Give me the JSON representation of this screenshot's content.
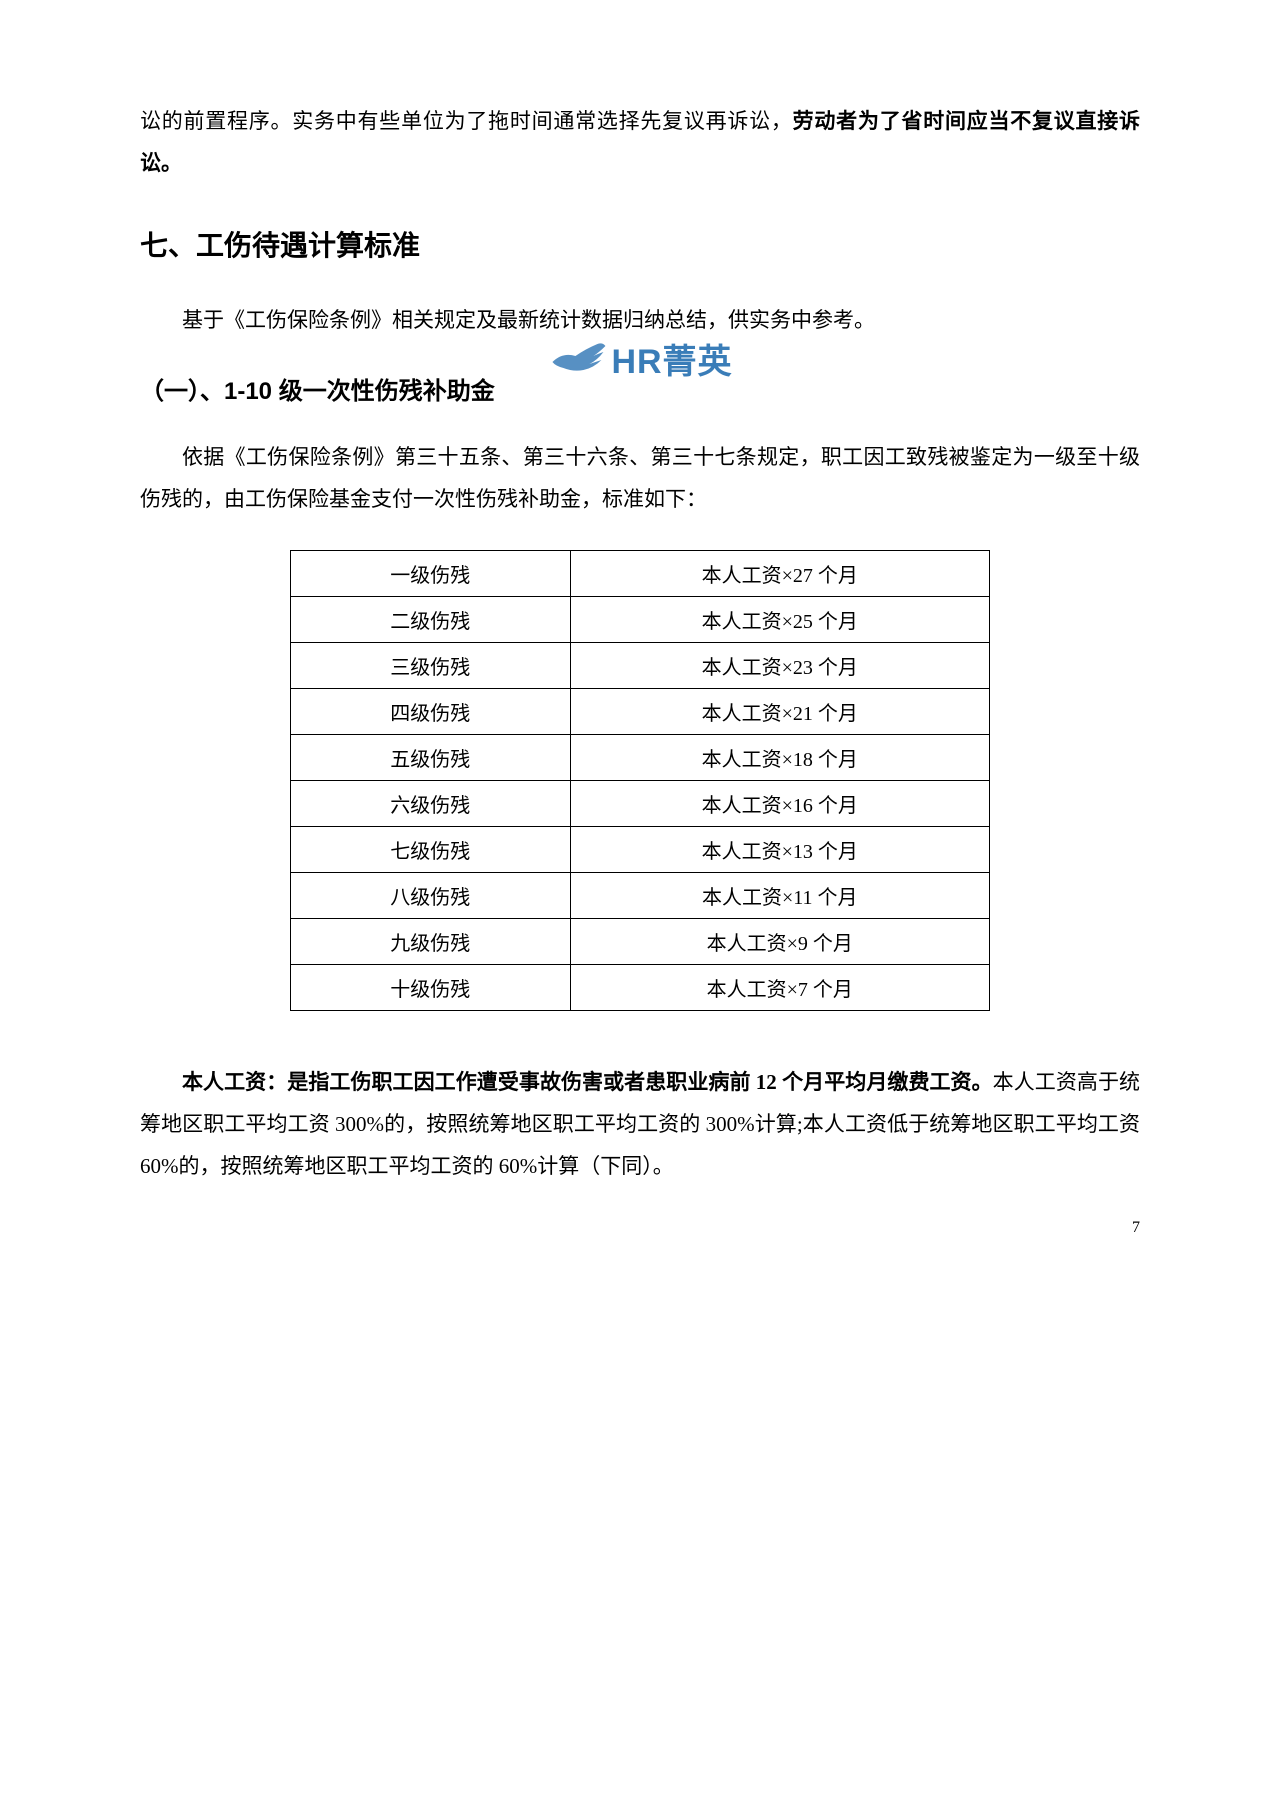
{
  "top_continuation": {
    "pre": "讼的前置程序。实务中有些单位为了拖时间通常选择先复议再诉讼，",
    "bold": "劳动者为了省时间应当不复议直接诉讼。"
  },
  "section_heading": "七、工伤待遇计算标准",
  "intro_para": "基于《工伤保险条例》相关规定及最新统计数据归纳总结，供实务中参考。",
  "subheading": "（一）、1-10 级一次性伤残补助金",
  "legal_basis": "依据《工伤保险条例》第三十五条、第三十六条、第三十七条规定，职工因工致残被鉴定为一级至十级伤残的，由工伤保险基金支付一次性伤残补助金，标准如下：",
  "table": {
    "rows": [
      {
        "level": "一级伤残",
        "amount": "本人工资×27 个月"
      },
      {
        "level": "二级伤残",
        "amount": "本人工资×25 个月"
      },
      {
        "level": "三级伤残",
        "amount": "本人工资×23 个月"
      },
      {
        "level": "四级伤残",
        "amount": "本人工资×21 个月"
      },
      {
        "level": "五级伤残",
        "amount": "本人工资×18 个月"
      },
      {
        "level": "六级伤残",
        "amount": "本人工资×16 个月"
      },
      {
        "level": "七级伤残",
        "amount": "本人工资×13 个月"
      },
      {
        "level": "八级伤残",
        "amount": "本人工资×11 个月"
      },
      {
        "level": "九级伤残",
        "amount": "本人工资×9 个月"
      },
      {
        "level": "十级伤残",
        "amount": "本人工资×7 个月"
      }
    ],
    "border_color": "#000000",
    "cell_fontsize": 20
  },
  "definition_para": {
    "bold": "本人工资：是指工伤职工因工作遭受事故伤害或者患职业病前 12 个月平均月缴费工资。",
    "rest": "本人工资高于统筹地区职工平均工资 300%的，按照统筹地区职工平均工资的 300%计算;本人工资低于统筹地区职工平均工资 60%的，按照统筹地区职工平均工资的 60%计算（下同）。"
  },
  "watermark": {
    "text": "HR菁英",
    "text_color": "#3a7db8",
    "icon_color": "#3a7db8"
  },
  "page_number": "7",
  "colors": {
    "text": "#000000",
    "background": "#ffffff"
  }
}
